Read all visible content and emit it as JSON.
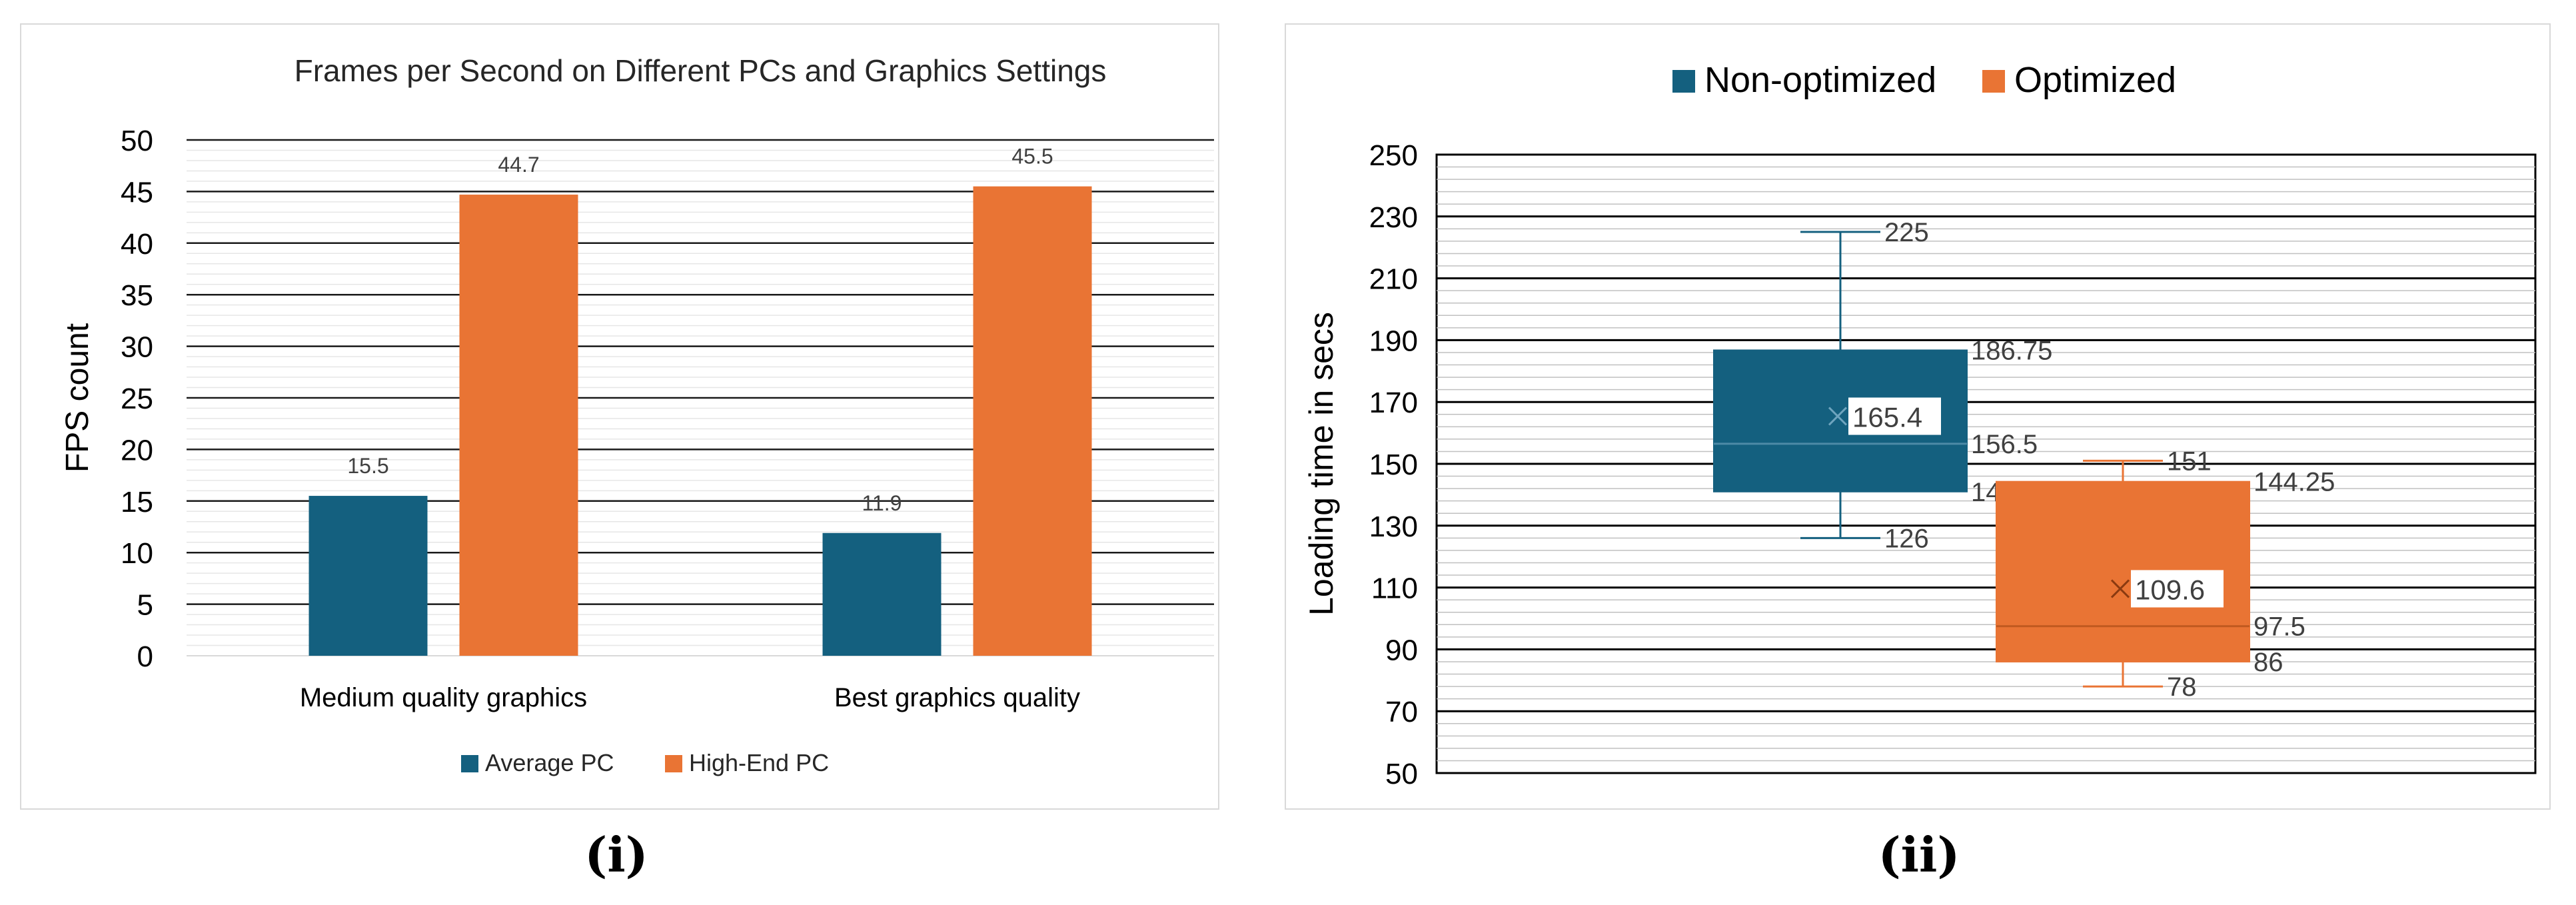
{
  "chart_data": [
    {
      "type": "bar",
      "title": "Frames per Second on Different PCs and Graphics Settings",
      "ylabel": "FPS count",
      "xlabel": "",
      "categories": [
        "Medium quality graphics",
        "Best graphics quality"
      ],
      "series": [
        {
          "name": "Average PC",
          "values": [
            15.5,
            11.9
          ],
          "color": "#14607f"
        },
        {
          "name": "High-End PC",
          "values": [
            44.7,
            45.5
          ],
          "color": "#e97434"
        }
      ],
      "ylim": [
        0,
        50
      ],
      "yticks": [
        0,
        5,
        10,
        15,
        20,
        25,
        30,
        35,
        40,
        45,
        50
      ],
      "grid": true,
      "legend": "bottom"
    },
    {
      "type": "box",
      "title": "",
      "ylabel": "Loading time in secs",
      "xlabel": "",
      "ylim": [
        50,
        250
      ],
      "yticks": [
        50,
        70,
        90,
        110,
        130,
        150,
        170,
        190,
        210,
        230,
        250
      ],
      "grid": true,
      "legend": "top",
      "series": [
        {
          "name": "Non-optimized",
          "color": "#14607f",
          "min": 126,
          "q1": 141,
          "median": 156.5,
          "mean": 165.4,
          "q3": 186.75,
          "max": 225,
          "labels": {
            "min": "126",
            "q1": "141",
            "median": "156.5",
            "mean": "165.4",
            "q3": "186.75",
            "max": "225"
          }
        },
        {
          "name": "Optimized",
          "color": "#e97434",
          "min": 78,
          "q1": 86,
          "median": 97.5,
          "mean": 109.6,
          "q3": 144.25,
          "max": 151,
          "labels": {
            "min": "78",
            "q1": "86",
            "median": "97.5",
            "mean": "109.6",
            "q3": "144.25",
            "max": "151"
          }
        }
      ]
    }
  ],
  "captions": [
    "(i)",
    "(ii)"
  ]
}
